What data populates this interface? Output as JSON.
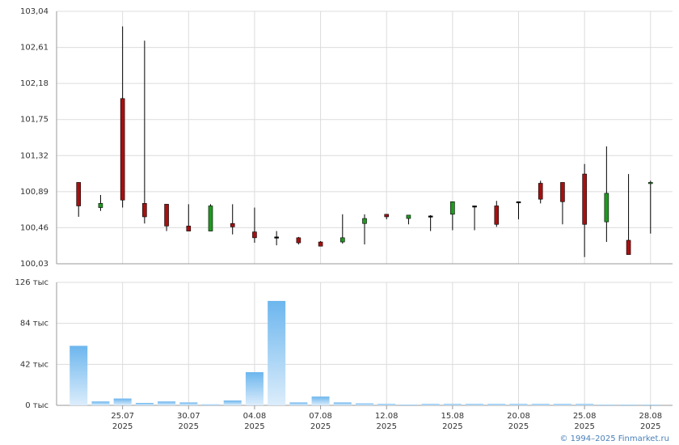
{
  "chart_data": [
    {
      "type": "candlestick",
      "up_color": "#1f9a1f",
      "down_color": "#a80f0f",
      "flat_color": "#000000",
      "open": [
        101.0,
        100.7,
        102.0,
        100.75,
        100.74,
        100.48,
        100.42,
        100.51,
        100.41,
        100.35,
        100.34,
        100.29,
        100.29,
        100.51,
        100.62,
        100.57,
        100.6,
        100.62,
        100.72,
        100.72,
        100.77,
        100.99,
        101.0,
        101.1,
        100.53,
        100.31,
        100.99
      ],
      "high": [
        101.0,
        100.85,
        102.86,
        102.69,
        100.74,
        100.74,
        100.74,
        100.74,
        100.7,
        100.42,
        100.35,
        100.3,
        100.62,
        100.62,
        100.62,
        100.61,
        100.61,
        100.77,
        100.72,
        100.78,
        100.77,
        101.02,
        101.0,
        101.22,
        101.43,
        101.1,
        101.02
      ],
      "low": [
        100.59,
        100.66,
        100.7,
        100.51,
        100.42,
        100.42,
        100.42,
        100.38,
        100.28,
        100.25,
        100.26,
        100.24,
        100.27,
        100.26,
        100.56,
        100.5,
        100.42,
        100.43,
        100.43,
        100.47,
        100.56,
        100.75,
        100.5,
        100.11,
        100.29,
        100.14,
        100.39
      ],
      "close": [
        100.72,
        100.75,
        100.79,
        100.59,
        100.48,
        100.42,
        100.72,
        100.47,
        100.34,
        100.35,
        100.28,
        100.24,
        100.34,
        100.57,
        100.59,
        100.61,
        100.6,
        100.77,
        100.72,
        100.5,
        100.77,
        100.8,
        100.77,
        100.5,
        100.87,
        100.14,
        101.0
      ],
      "ylim": [
        100.03,
        103.04
      ],
      "yticks": [
        {
          "value": 100.03,
          "label": "100,03"
        },
        {
          "value": 100.46,
          "label": "100,46"
        },
        {
          "value": 100.89,
          "label": "100,89"
        },
        {
          "value": 101.32,
          "label": "101,32"
        },
        {
          "value": 101.75,
          "label": "101,75"
        },
        {
          "value": 102.18,
          "label": "102,18"
        },
        {
          "value": 102.61,
          "label": "102,61"
        },
        {
          "value": 103.04,
          "label": "103,04"
        }
      ],
      "grid": true
    },
    {
      "type": "bar",
      "color": "#6cb6ee",
      "categories": [
        null,
        null,
        "25.07",
        null,
        null,
        "30.07",
        null,
        null,
        "04.08",
        null,
        null,
        "07.08",
        null,
        null,
        "12.08",
        null,
        null,
        "15.08",
        null,
        null,
        "20.08",
        null,
        null,
        "25.08",
        null,
        null,
        "28.08"
      ],
      "category_years": [
        null,
        null,
        "2025",
        null,
        null,
        "2025",
        null,
        null,
        "2025",
        null,
        null,
        "2025",
        null,
        null,
        "2025",
        null,
        null,
        "2025",
        null,
        null,
        "2025",
        null,
        null,
        "2025",
        null,
        null,
        "2025"
      ],
      "values": [
        61000,
        4000,
        7000,
        2500,
        4000,
        3000,
        1000,
        5000,
        34000,
        107000,
        3000,
        9000,
        3000,
        2000,
        1500,
        800,
        1500,
        1500,
        1500,
        1500,
        1500,
        1500,
        1500,
        1500,
        800,
        800,
        800
      ],
      "ylim": [
        0,
        126000
      ],
      "yticks": [
        {
          "value": 0,
          "label": "0 тыс"
        },
        {
          "value": 42000,
          "label": "42 тыс"
        },
        {
          "value": 84000,
          "label": "84 тыс"
        },
        {
          "value": 126000,
          "label": "126 тыс"
        }
      ],
      "grid": true
    }
  ],
  "credit": "© 1994–2025 Finmarket.ru"
}
